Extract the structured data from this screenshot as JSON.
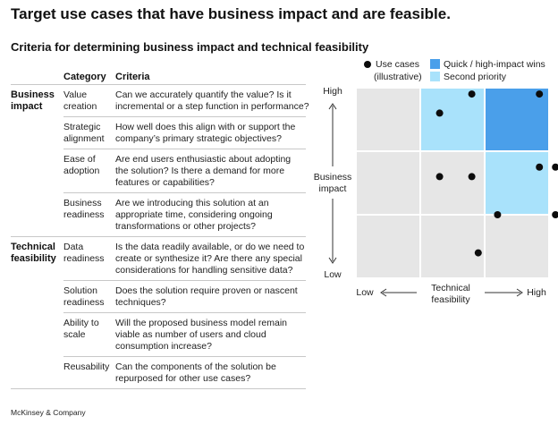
{
  "title": "Target use cases that have business impact and are feasible.",
  "subtitle": "Criteria for determining business impact and technical feasibility",
  "table": {
    "col_category": "Category",
    "col_criteria": "Criteria",
    "groups": [
      {
        "label": [
          "Business",
          "impact"
        ],
        "rows": [
          {
            "category": [
              "Value",
              "creation"
            ],
            "criteria": [
              "Can we accurately quantify the value? Is it",
              "incremental or a step function in performance?"
            ]
          },
          {
            "category": [
              "Strategic",
              "alignment"
            ],
            "criteria": [
              "How well does this align with or support the",
              "company’s primary strategic objectives?"
            ]
          },
          {
            "category": [
              "Ease of",
              "adoption"
            ],
            "criteria": [
              "Are end users enthusiastic about adopting",
              "the solution? Is there a demand for more",
              "features or capabilities?"
            ]
          },
          {
            "category": [
              "Business",
              "readiness"
            ],
            "criteria": [
              "Are we introducing this solution at an",
              "appropriate time, considering ongoing",
              "transformations or other projects?"
            ]
          }
        ]
      },
      {
        "label": [
          "Technical",
          "feasibility"
        ],
        "rows": [
          {
            "category": [
              "Data",
              "readiness"
            ],
            "criteria": [
              "Is the data readily available, or do we need to",
              "create or synthesize it? Are there any special",
              "considerations for handling sensitive data?"
            ]
          },
          {
            "category": [
              "Solution",
              "readiness"
            ],
            "criteria": [
              "Does the solution require proven or nascent",
              "techniques?"
            ]
          },
          {
            "category": [
              "Ability to",
              "scale"
            ],
            "criteria": [
              "Will the proposed business model remain",
              "viable as number of users and cloud",
              "consumption increase?"
            ]
          },
          {
            "category": [
              "Reusability"
            ],
            "criteria": [
              "Can the components of the solution be",
              "repurposed for other use cases?"
            ]
          }
        ]
      }
    ]
  },
  "chart_data": {
    "type": "scatter",
    "grid": {
      "rows": 3,
      "cols": 3
    },
    "legend": {
      "use_cases": [
        "Use cases",
        "(illustrative)"
      ],
      "quick_wins": "Quick / high-impact wins",
      "second_priority": "Second priority"
    },
    "y_axis": {
      "label": [
        "Business",
        "impact"
      ],
      "high": "High",
      "low": "Low"
    },
    "x_axis": {
      "label": [
        "Technical",
        "feasibility"
      ],
      "low": "Low",
      "high": "High"
    },
    "cells": [
      {
        "col": 2,
        "row": 3,
        "category": "second_priority"
      },
      {
        "col": 3,
        "row": 3,
        "category": "quick_wins"
      },
      {
        "col": 3,
        "row": 2,
        "category": "second_priority"
      }
    ],
    "points": [
      {
        "x": 1.8,
        "y": 2.6
      },
      {
        "x": 2.3,
        "y": 2.9
      },
      {
        "x": 3.35,
        "y": 2.9
      },
      {
        "x": 1.8,
        "y": 1.6
      },
      {
        "x": 2.3,
        "y": 1.6
      },
      {
        "x": 3.35,
        "y": 1.75
      },
      {
        "x": 3.6,
        "y": 1.75
      },
      {
        "x": 2.7,
        "y": 1.0
      },
      {
        "x": 3.6,
        "y": 1.0
      },
      {
        "x": 2.4,
        "y": 0.4
      }
    ],
    "colors": {
      "base": "#e6e6e6",
      "quick_wins": "#4a9fea",
      "second_priority": "#a9e2fb",
      "dot": "#0c0c0c"
    }
  },
  "footer": "McKinsey & Company"
}
